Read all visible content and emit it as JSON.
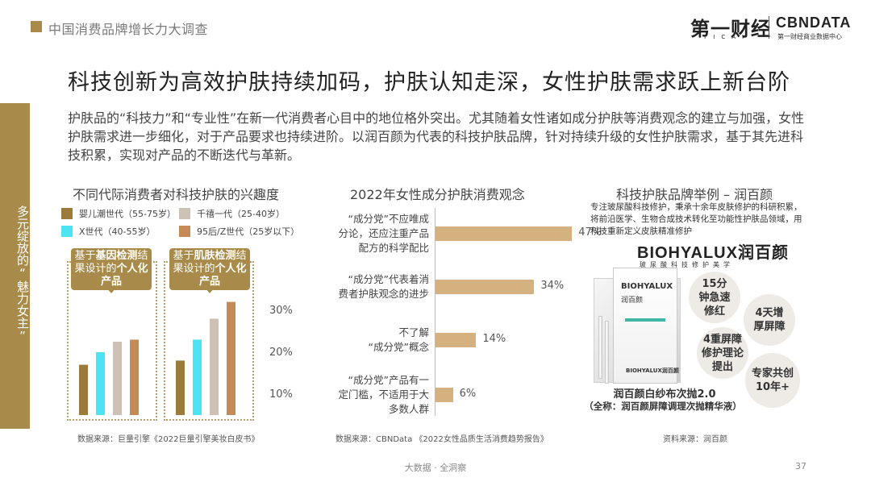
{
  "topbar": {
    "title": "中国消费品牌增长力大调查"
  },
  "logos": {
    "yicai_cn": "第一财经",
    "yicai_sub": "YICAI",
    "cbndata": "CBNDATA",
    "cbndata_sub": "第一财经商业数据中心"
  },
  "headline": "科技创新为高效护肤持续加码，护肤认知走深，女性护肤需求跃上新台阶",
  "side_tab": "多元绽放的“魅力女主”",
  "intro": "护肤品的“科技力”和“专业性”在新一代消费者心目中的地位格外突出。尤其随着女性诸如成分护肤等消费观念的建立与加强，女性护肤需求进一步细化，对于产品要求也持续进阶。以润百颜为代表的科技护肤品牌，针对持续升级的女性护肤需求，基于其先进科技积累，实现对产品的不断迭代与革新。",
  "left_section": {
    "title": "不同代际消费者对科技护肤的兴趣度",
    "legend": [
      {
        "label": "婴儿潮世代（55-75岁）",
        "color": "#9b7a3c"
      },
      {
        "label": "千禧一代（25-40岁）",
        "color": "#cdc1b5"
      },
      {
        "label": "X世代（40-55岁）",
        "color": "#4de3f0"
      },
      {
        "label": "95后/Z世代（25岁以下）",
        "color": "#c58b57"
      }
    ],
    "callout1": {
      "pre": "基于",
      "bold1": "基因检测",
      "mid": "结果设计的",
      "bold2": "个人化产品"
    },
    "callout2": {
      "pre": "基于",
      "bold1": "肌肤检测",
      "mid": "结果设计的",
      "bold2": "个人化产品"
    },
    "yticks": [
      "30%",
      "20%",
      "10%"
    ],
    "source": "数据来源：巨量引擎《2022巨量引擎美妆白皮书》"
  },
  "chart_data": [
    {
      "type": "bar",
      "categories": [
        "基于基因检测结果设计的个人化产品",
        "基于肌肤检测结果设计的个人化产品"
      ],
      "series": [
        {
          "name": "婴儿潮世代（55-75岁）",
          "values": [
            12,
            13
          ]
        },
        {
          "name": "X世代（40-55岁）",
          "values": [
            15,
            18
          ]
        },
        {
          "name": "千禧一代（25-40岁）",
          "values": [
            17.5,
            23
          ]
        },
        {
          "name": "95后/Z世代（25岁以下）",
          "values": [
            18,
            27
          ]
        }
      ],
      "title": "不同代际消费者对科技护肤的兴趣度",
      "yticks": [
        "10%",
        "20%",
        "30%"
      ],
      "ylim": [
        0,
        34
      ]
    },
    {
      "type": "bar",
      "orientation": "horizontal",
      "categories": [
        "“成分党”不应唯成分论，还应注重产品配方的科学配比",
        "“成分党”代表着消费者护肤观念的进步",
        "不了解“成分党”概念",
        "“成分党”产品有一定门槛，不适用于大多数人群"
      ],
      "values": [
        47,
        34,
        14,
        6
      ],
      "labels": [
        "47%",
        "34%",
        "14%",
        "6%"
      ],
      "title": "2022年女性成分护肤消费观念"
    }
  ],
  "mid_section": {
    "title": "2022年女性成分护肤消费观念",
    "cats": [
      [
        "“成分党”不应唯成",
        "分论，还应注重产品",
        "配方的科学配比"
      ],
      [
        "“成分党”代表着消",
        "费者护肤观念的进步"
      ],
      [
        "不了解",
        "“成分党”概念"
      ],
      [
        "“成分党”产品有一",
        "定门槛，不适用于大",
        "多数人群"
      ]
    ],
    "source": "数据来源：CBNData 《2022女性品质生活消费趋势报告》"
  },
  "right_section": {
    "title": "科技护肤品牌举例 – 润百颜",
    "desc": "专注玻尿酸科技修护，秉承十余年皮肤修护的科研积累，将前沿医学、生物合成技术转化至功能性护肤品领域，用科技重新定义皮肤精准修护",
    "brand_logo": "BIOHYALUX润百颜",
    "brand_tag": "玻尿酸科技修护美学",
    "box_label1": "BIOHYALUX",
    "box_label2": "润百颜",
    "box_label3": "BIOHYALUX润百颜",
    "bubbles": [
      "15分钟急速修红",
      "4天增厚屏障",
      "4重屏障修护理论提出",
      "专家共创10年+"
    ],
    "product_name": "润百颜白纱布次抛2.0",
    "product_full": "（全称：润百颜屏障调理次抛精华液）",
    "source": "资料来源：润百颜"
  },
  "footer": {
    "text": "大数据 · 全洞察",
    "page": "37"
  }
}
